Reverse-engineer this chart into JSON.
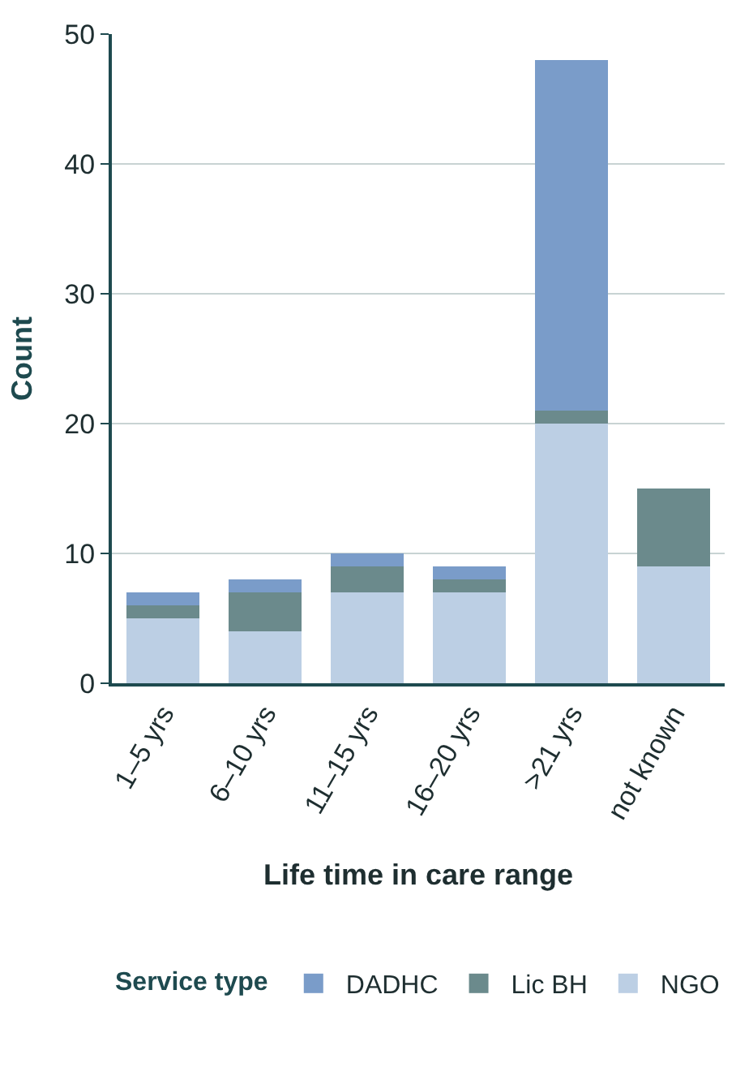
{
  "chart_data": {
    "type": "bar",
    "stacked": true,
    "xlabel": "Life time in care range",
    "ylabel": "Count",
    "legend_title": "Service type",
    "categories": [
      "1–5 yrs",
      "6–10 yrs",
      "11–15 yrs",
      "16–20 yrs",
      ">21 yrs",
      "not known"
    ],
    "series": [
      {
        "name": "NGO",
        "color": "#bccfe4",
        "values": [
          5,
          4,
          7,
          7,
          20,
          9
        ]
      },
      {
        "name": "Lic BH",
        "color": "#6b8a8c",
        "values": [
          1,
          3,
          2,
          1,
          1,
          6
        ]
      },
      {
        "name": "DADHC",
        "color": "#7a9cc9",
        "values": [
          1,
          1,
          1,
          1,
          27,
          0
        ]
      }
    ],
    "ylim": [
      0,
      50
    ],
    "yticks": [
      0,
      10,
      20,
      30,
      40,
      50
    ],
    "grid": "y",
    "legend": "bottom"
  }
}
